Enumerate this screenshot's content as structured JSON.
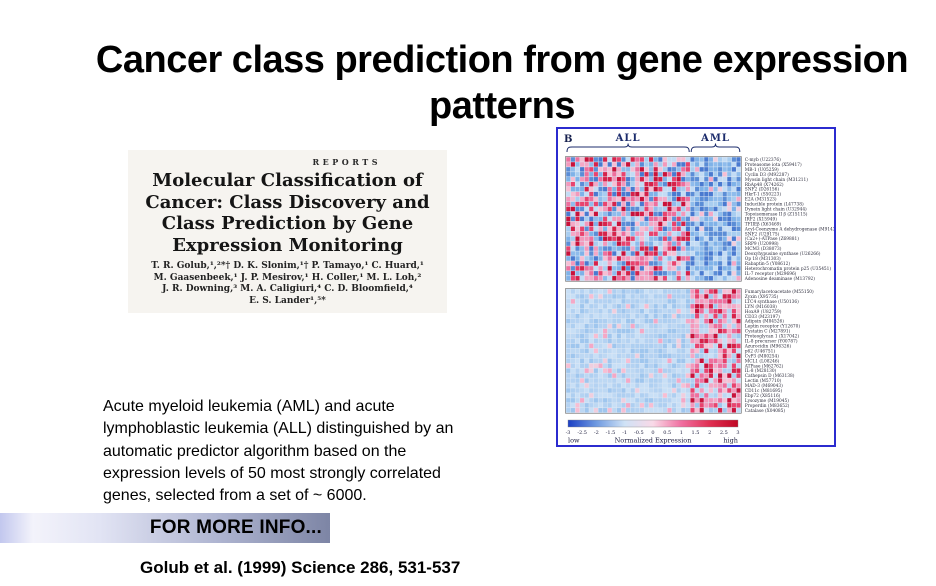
{
  "slide": {
    "title_lines": [
      "Cancer class prediction from gene expression",
      "patterns"
    ],
    "description_lines": [
      "Acute myeloid leukemia (AML) and acute",
      "lymphoblastic leukemia (ALL) distinguished by an",
      "automatic predictor algorithm based on the",
      "expression levels of  50 most strongly correlated",
      "genes, selected from a set of ~ 6000."
    ],
    "info_banner_label": "FOR MORE INFO...",
    "citation": "Golub et al. (1999) Science 286, 531-537"
  },
  "paper": {
    "header": "REPORTS",
    "title_lines": [
      "Molecular Classification of",
      "Cancer: Class Discovery and",
      "Class Prediction by Gene",
      "Expression Monitoring"
    ],
    "author_lines": [
      "T. R. Golub,¹,²*† D. K. Slonim,¹† P. Tamayo,¹ C. Huard,¹",
      "M. Gaasenbeek,¹ J. P. Mesirov,¹ H. Coller,¹ M. L. Loh,²",
      "J. R. Downing,³ M. A. Caligiuri,⁴ C. D. Bloomfield,⁴",
      "E. S. Lander¹,⁵*"
    ]
  },
  "chart_data": {
    "type": "heatmap",
    "panel_label": "B",
    "sample_groups": [
      {
        "label": "ALL",
        "columns": 27
      },
      {
        "label": "AML",
        "columns": 11
      }
    ],
    "label_color": "#1c2c6c",
    "border_color": "#2b2bcf",
    "grid_background": "#dfe9f5",
    "seed": 1999,
    "palettes": {
      "blues": [
        "#7fb2e8",
        "#a8cdf0",
        "#5b8dd6",
        "#c3dcf5",
        "#8fbcec",
        "#4a7ad0"
      ],
      "pale_blues": [
        "#aecff1",
        "#bdd8f3",
        "#c8dff6",
        "#9fc6ee",
        "#b4d2f2"
      ],
      "pinks": [
        "#f398bb",
        "#ee6f9d",
        "#e8436e",
        "#d6224a",
        "#f7bed3",
        "#c9123a",
        "#f4a8c6"
      ],
      "pale_pinks": [
        "#f7bed3",
        "#f4a8c6",
        "#f0cede"
      ]
    },
    "blocks": [
      {
        "name": "ALL-correlated genes",
        "pattern": "high (red/pink) in ALL samples, low (blue) in AML samples",
        "regions": {
          "all": {
            "warm_prob": 0.54,
            "warm_pal": "pinks",
            "cold_pal": "blues"
          },
          "aml": {
            "warm_prob": 0.1,
            "warm_pal": "pale_pinks",
            "cold_pal": "blues"
          }
        },
        "genes": [
          "C-myb (U22376)",
          "Proteasome iota (X59417)",
          "MB-1 (U05259)",
          "Cyclin D3 (M92287)",
          "Myosin light chain (M31211)",
          "RbAp48 (X74262)",
          "SNF2 (D26156)",
          "HkrT-1 (S50223)",
          "E2A (M31523)",
          "Inducible protein (L47738)",
          "Dynein light chain (U32944)",
          "Topoisomerase II β (Z15115)",
          "IRF2 (X15949)",
          "TFIIEβ (X63469)",
          "Acyl-Coenzyme A dehydrogenase (M91432)",
          "SNF2 (U29175)",
          "(Ca2+)-ATPase (Z69881)",
          "SRP9 (U20998)",
          "MCM3 (D38073)",
          "Deoxyhypusine synthase (U26266)",
          "Op 18 (M31303)",
          "Rabaptin-5 (Y08612)",
          "Heterochromatin protein p25 (U35451)",
          "IL-7 receptor (M29696)",
          "Adenosine deaminase (M13792)"
        ]
      },
      {
        "name": "AML-correlated genes",
        "pattern": "low (blue) in ALL samples, high (red/pink) in AML samples",
        "regions": {
          "all": {
            "warm_prob": 0.12,
            "warm_pal": "pale_pinks",
            "cold_pal": "pale_blues"
          },
          "aml": {
            "warm_prob": 0.72,
            "warm_pal": "pinks",
            "cold_pal": "pale_blues"
          }
        },
        "genes": [
          "Fumarylacetoacetate (M55150)",
          "Zyxin (X95735)",
          "LTC4 synthase (U50136)",
          "LYN (M16038)",
          "HoxA9 (U82759)",
          "CD33 (M23197)",
          "Adipsin (M84526)",
          "Leptin receptor (Y12670)",
          "Cystatin C (M27891)",
          "Proteoglycan 1 (X17042)",
          "IL-8 precursor (Y00787)",
          "Azurocidin (M96326)",
          "p62 (U46751)",
          "CyP3 (M80254)",
          "MCL1 (L08246)",
          "ATPase (M62762)",
          "IL-8 (M28130)",
          "Cathepsin D (M63138)",
          "Lectin (M57710)",
          "MAD-3 (M69043)",
          "CD11c (M81695)",
          "Ebp72 (X85116)",
          "Lysozyme (M19045)",
          "Properdin (M83652)",
          "Catalase (X04085)"
        ]
      }
    ],
    "colorbar": {
      "tick_labels": [
        "-3",
        "-2.5",
        "-2",
        "-1.5",
        "-1",
        "-0.5",
        "0",
        "0.5",
        "1",
        "1.5",
        "2",
        "2.5",
        "3"
      ],
      "axis_label": "Normalized Expression",
      "low_label": "low",
      "high_label": "high",
      "gradient": [
        "#1b3fc4",
        "#6f9ae0",
        "#cfe2f6",
        "#f9d9e7",
        "#f06fa0",
        "#e03052",
        "#c00824"
      ]
    }
  }
}
